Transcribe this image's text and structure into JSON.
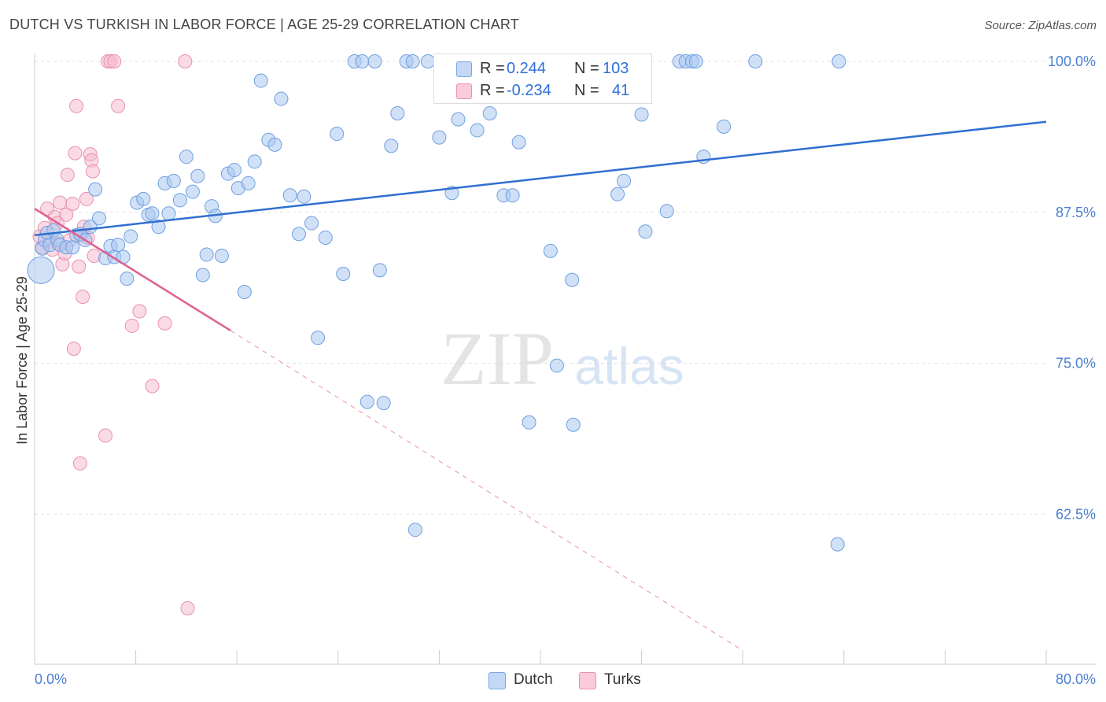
{
  "header": {
    "title": "DUTCH VS TURKISH IN LABOR FORCE | AGE 25-29 CORRELATION CHART",
    "source": "Source: ZipAtlas.com"
  },
  "watermark": {
    "zip": "ZIP",
    "atlas": "atlas"
  },
  "legend": {
    "rows": [
      {
        "r_label": "R =",
        "r_value": "0.244",
        "n_label": "N =",
        "n_value": "103"
      },
      {
        "r_label": "R =",
        "r_value": "-0.234",
        "n_label": "N =",
        "n_value": "41"
      }
    ],
    "bottom": [
      "Dutch",
      "Turks"
    ]
  },
  "colors": {
    "dutch_fill": "#aac8f0",
    "dutch_stroke": "#6f9fe0",
    "dutch_line": "#2f6fd0",
    "turks_fill": "#f6bcd0",
    "turks_stroke": "#e891b0",
    "turks_line": "#e06090",
    "tick_text": "#4a7fd0",
    "grid": "#e2e2e2"
  },
  "chart_data": {
    "type": "scatter",
    "title": "DUTCH VS TURKISH IN LABOR FORCE | AGE 25-29 CORRELATION CHART",
    "xlabel": "",
    "ylabel": "In Labor Force | Age 25-29",
    "xlim": [
      0,
      80
    ],
    "ylim": [
      50,
      101.5
    ],
    "x_tick_labels": [
      "0.0%",
      "80.0%"
    ],
    "y_ticks": [
      62.5,
      75.0,
      87.5,
      100.0
    ],
    "y_tick_labels": [
      "62.5%",
      "75.0%",
      "87.5%",
      "100.0%"
    ],
    "grid": true,
    "legend_position": "top-center",
    "series": [
      {
        "name": "Dutch",
        "R": 0.244,
        "N": 103,
        "trend": {
          "x": [
            0,
            80
          ],
          "y": [
            85.6,
            95.0
          ]
        },
        "points": [
          [
            0.5,
            82.7
          ],
          [
            0.6,
            84.5
          ],
          [
            0.8,
            85.2
          ],
          [
            1.0,
            85.8
          ],
          [
            1.2,
            84.8
          ],
          [
            1.5,
            86.0
          ],
          [
            1.8,
            85.2
          ],
          [
            2.0,
            84.8
          ],
          [
            2.5,
            84.6
          ],
          [
            3.0,
            84.6
          ],
          [
            3.3,
            85.6
          ],
          [
            3.6,
            85.7
          ],
          [
            4.0,
            85.2
          ],
          [
            4.4,
            86.3
          ],
          [
            4.8,
            89.4
          ],
          [
            5.1,
            87.0
          ],
          [
            5.6,
            83.7
          ],
          [
            6.0,
            84.7
          ],
          [
            6.3,
            83.8
          ],
          [
            6.6,
            84.8
          ],
          [
            7.0,
            83.8
          ],
          [
            7.3,
            82.0
          ],
          [
            7.6,
            85.5
          ],
          [
            8.1,
            88.3
          ],
          [
            8.6,
            88.6
          ],
          [
            9.0,
            87.3
          ],
          [
            9.3,
            87.4
          ],
          [
            9.8,
            86.3
          ],
          [
            10.3,
            89.9
          ],
          [
            10.6,
            87.4
          ],
          [
            11.0,
            90.1
          ],
          [
            11.5,
            88.5
          ],
          [
            12.0,
            92.1
          ],
          [
            12.5,
            89.2
          ],
          [
            12.9,
            90.5
          ],
          [
            13.3,
            82.3
          ],
          [
            13.6,
            84.0
          ],
          [
            14.0,
            88.0
          ],
          [
            14.3,
            87.2
          ],
          [
            14.8,
            83.9
          ],
          [
            15.3,
            90.7
          ],
          [
            15.8,
            91.0
          ],
          [
            16.1,
            89.5
          ],
          [
            16.6,
            80.9
          ],
          [
            16.9,
            89.9
          ],
          [
            17.4,
            91.7
          ],
          [
            17.9,
            98.4
          ],
          [
            18.5,
            93.5
          ],
          [
            19.0,
            93.1
          ],
          [
            19.5,
            96.9
          ],
          [
            20.2,
            88.9
          ],
          [
            20.9,
            85.7
          ],
          [
            21.3,
            88.8
          ],
          [
            21.9,
            86.6
          ],
          [
            22.4,
            77.1
          ],
          [
            23.0,
            85.4
          ],
          [
            23.9,
            94.0
          ],
          [
            24.4,
            82.4
          ],
          [
            25.3,
            100.0
          ],
          [
            25.9,
            100.0
          ],
          [
            26.3,
            71.8
          ],
          [
            26.9,
            100.0
          ],
          [
            27.3,
            82.7
          ],
          [
            27.6,
            71.7
          ],
          [
            28.2,
            93.0
          ],
          [
            28.7,
            95.7
          ],
          [
            29.4,
            100.0
          ],
          [
            29.9,
            100.0
          ],
          [
            30.1,
            61.2
          ],
          [
            31.1,
            100.0
          ],
          [
            32.0,
            93.7
          ],
          [
            33.0,
            89.1
          ],
          [
            33.5,
            95.2
          ],
          [
            34.0,
            100.0
          ],
          [
            35.0,
            94.3
          ],
          [
            36.0,
            95.7
          ],
          [
            36.5,
            100.0
          ],
          [
            37.1,
            88.9
          ],
          [
            37.8,
            88.9
          ],
          [
            38.3,
            93.3
          ],
          [
            39.1,
            70.1
          ],
          [
            40.0,
            100.0
          ],
          [
            40.8,
            84.3
          ],
          [
            41.3,
            74.8
          ],
          [
            42.0,
            100.0
          ],
          [
            42.5,
            81.9
          ],
          [
            42.6,
            69.9
          ],
          [
            44.3,
            100.0
          ],
          [
            45.5,
            98.0
          ],
          [
            46.1,
            89.0
          ],
          [
            46.6,
            90.1
          ],
          [
            48.0,
            95.6
          ],
          [
            48.3,
            85.9
          ],
          [
            50.0,
            87.6
          ],
          [
            51.0,
            100.0
          ],
          [
            51.5,
            100.0
          ],
          [
            52.0,
            100.0
          ],
          [
            52.3,
            100.0
          ],
          [
            52.9,
            92.1
          ],
          [
            54.5,
            94.6
          ],
          [
            57.0,
            100.0
          ],
          [
            63.5,
            60.0
          ],
          [
            63.6,
            100.0
          ]
        ]
      },
      {
        "name": "Turks",
        "R": -0.234,
        "N": 41,
        "trend": {
          "x": [
            0,
            15.5
          ],
          "y": [
            87.8,
            77.7
          ]
        },
        "trend_extension": {
          "x": [
            15.5,
            56.0
          ],
          "y": [
            77.7,
            51.2
          ]
        },
        "points": [
          [
            0.4,
            85.5
          ],
          [
            0.6,
            84.6
          ],
          [
            0.8,
            86.2
          ],
          [
            1.0,
            87.8
          ],
          [
            1.2,
            85.1
          ],
          [
            1.4,
            84.4
          ],
          [
            1.6,
            87.1
          ],
          [
            1.8,
            86.6
          ],
          [
            1.9,
            84.9
          ],
          [
            2.0,
            88.3
          ],
          [
            2.2,
            83.2
          ],
          [
            2.4,
            84.1
          ],
          [
            2.5,
            87.3
          ],
          [
            2.6,
            90.6
          ],
          [
            2.8,
            85.2
          ],
          [
            3.0,
            88.2
          ],
          [
            3.1,
            76.2
          ],
          [
            3.2,
            92.4
          ],
          [
            3.3,
            96.3
          ],
          [
            3.5,
            83.0
          ],
          [
            3.6,
            66.7
          ],
          [
            3.7,
            85.6
          ],
          [
            3.8,
            80.5
          ],
          [
            3.9,
            86.3
          ],
          [
            4.1,
            88.6
          ],
          [
            4.2,
            85.4
          ],
          [
            4.4,
            92.3
          ],
          [
            4.5,
            91.8
          ],
          [
            4.6,
            90.9
          ],
          [
            4.7,
            83.9
          ],
          [
            5.6,
            69.0
          ],
          [
            5.8,
            100.0
          ],
          [
            6.0,
            100.0
          ],
          [
            6.3,
            100.0
          ],
          [
            6.6,
            96.3
          ],
          [
            7.7,
            78.1
          ],
          [
            8.3,
            79.3
          ],
          [
            9.3,
            73.1
          ],
          [
            10.3,
            78.3
          ],
          [
            11.9,
            100.0
          ],
          [
            12.1,
            54.7
          ]
        ]
      }
    ]
  }
}
